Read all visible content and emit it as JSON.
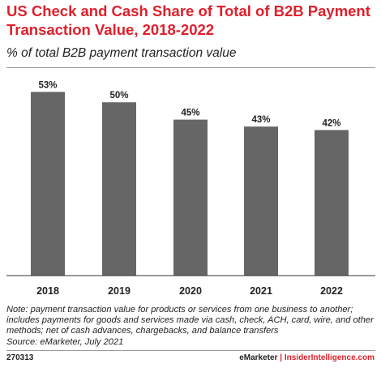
{
  "chart_data": {
    "type": "bar",
    "title": "US Check and Cash Share of Total of B2B Payment Transaction Value, 2018-2022",
    "subtitle": "% of total B2B payment transaction value",
    "categories": [
      "2018",
      "2019",
      "2020",
      "2021",
      "2022"
    ],
    "values": [
      53,
      50,
      45,
      43,
      42
    ],
    "value_labels": [
      "53%",
      "50%",
      "45%",
      "43%",
      "42%"
    ],
    "xlabel": "",
    "ylabel": "",
    "ylim": [
      0,
      58
    ],
    "grid": false,
    "legend": "none",
    "bar_color": "#666666"
  },
  "notes": {
    "note": "Note: payment transaction value for products or services from one business to another; includes payments for goods and services made via cash, check, ACH, card, wire, and other methods; net of cash advances, chargebacks, and balance transfers",
    "source": "Source: eMarketer, July 2021"
  },
  "footer": {
    "chart_id": "270313",
    "brand_left": "eMarketer",
    "separator": "|",
    "brand_right": "InsiderIntelligence.com"
  },
  "colors": {
    "title": "#e0202c",
    "accent": "#e0202c",
    "bar": "#666666"
  }
}
